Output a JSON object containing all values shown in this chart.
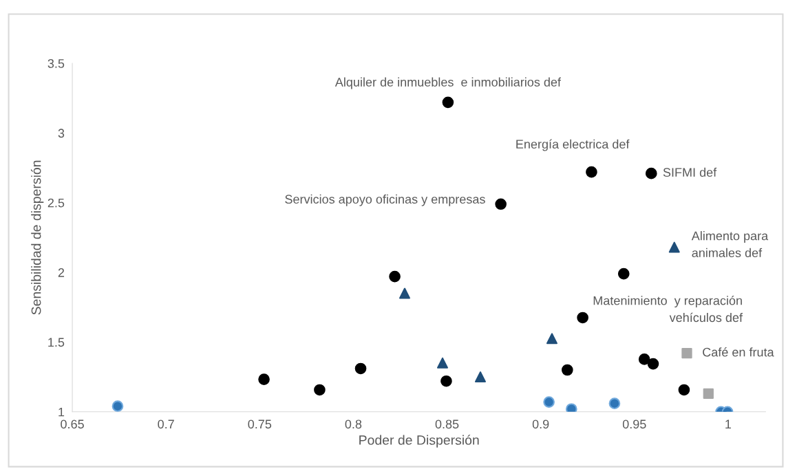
{
  "chart_data": {
    "type": "scatter",
    "xlabel": "Poder de Dispersión",
    "ylabel": "Sensibilidad de dispersión",
    "xlim": [
      0.65,
      1.02
    ],
    "xticks": [
      0.65,
      0.7,
      0.75,
      0.8,
      0.85,
      0.9,
      0.95,
      1
    ],
    "ylim": [
      1,
      3.5
    ],
    "yticks": [
      1,
      1.5,
      2,
      2.5,
      3,
      3.5
    ],
    "grid": false,
    "series": [
      {
        "color": "#000000",
        "marker": "circle",
        "x": [
          0.8505,
          0.9271,
          0.959,
          0.8787,
          0.8221,
          0.9443,
          0.9224,
          0.9553,
          0.96,
          0.9142,
          0.8039,
          0.7523,
          0.782,
          0.8496,
          0.9765
        ],
        "values": [
          3.22,
          2.72,
          2.71,
          2.49,
          1.97,
          1.99,
          1.675,
          1.377,
          1.344,
          1.3,
          1.31,
          1.233,
          1.157,
          1.22,
          1.157
        ]
      },
      {
        "color": "#1f4e79",
        "marker": "triangle",
        "x": [
          0.8274,
          0.8476,
          0.8678,
          0.906,
          0.9713
        ],
        "values": [
          1.85,
          1.35,
          1.25,
          1.525,
          2.18
        ]
      },
      {
        "color": "#a6a6a6",
        "marker": "square",
        "x": [
          0.978,
          0.9895
        ],
        "values": [
          1.42,
          1.13
        ]
      },
      {
        "color": "#2e75b6",
        "marker": "circle",
        "x": [
          0.6742,
          0.9044,
          0.9164,
          0.9394,
          0.9962,
          0.9997
        ],
        "values": [
          1.04,
          1.07,
          1.02,
          1.06,
          1.0,
          1.0
        ]
      }
    ],
    "annotations": [
      {
        "text": "Alquiler de inmuebles  e inmobiliarios def",
        "x": 0.8505,
        "y": 3.22
      },
      {
        "text": "Energía electrica def",
        "x": 0.9271,
        "y": 2.72
      },
      {
        "text": "SIFMI def",
        "x": 0.959,
        "y": 2.71
      },
      {
        "text": "Servicios apoyo oficinas y empresas",
        "x": 0.8787,
        "y": 2.49
      },
      {
        "text": "Alimento para\nanimales def",
        "x": 0.9713,
        "y": 2.18
      },
      {
        "text": "Matenimiento  y reparación\nvehículos def",
        "x": 0.9443,
        "y": 1.99
      },
      {
        "text": "Café en fruta",
        "x": 0.978,
        "y": 1.42
      }
    ]
  }
}
